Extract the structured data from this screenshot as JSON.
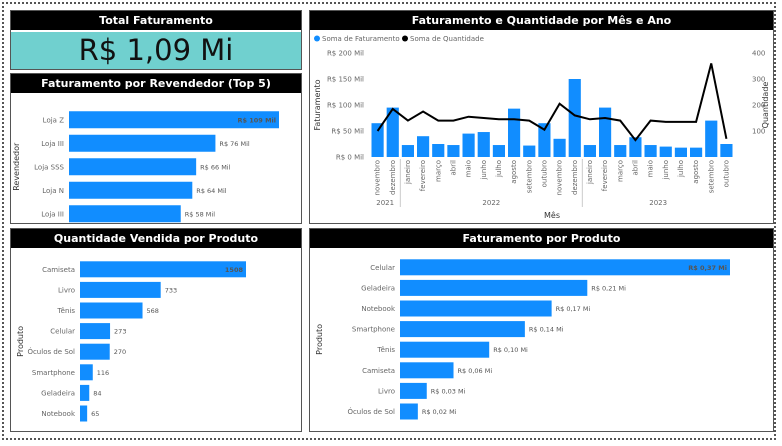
{
  "kpi": {
    "title": "Total Faturamento",
    "value": "R$ 1,09 Mi"
  },
  "colors": {
    "bar": "#118dff",
    "line": "#000000",
    "title_bg": "#000000",
    "kpi_bg": "#70d0cf"
  },
  "reseller": {
    "title": "Faturamento por Revendedor (Top 5)"
  },
  "monthly": {
    "title": "Faturamento e Quantidade por Mês e Ano"
  },
  "qty_product": {
    "title": "Quantidade Vendida por Produto"
  },
  "rev_product": {
    "title": "Faturamento por Produto"
  },
  "chart_data": [
    {
      "type": "bar",
      "orientation": "horizontal",
      "title": "Faturamento por Revendedor (Top 5)",
      "ylabel": "Revendedor",
      "categories": [
        "Loja Z",
        "Loja III",
        "Loja SSS",
        "Loja N",
        "Loja III"
      ],
      "values": [
        109,
        76,
        66,
        64,
        58
      ],
      "data_labels": [
        "R$ 109 Mil",
        "R$ 76 Mil",
        "R$ 66 Mil",
        "R$ 64 Mil",
        "R$ 58 Mil"
      ],
      "xlim": [
        0,
        109
      ]
    },
    {
      "type": "bar+line",
      "title": "Faturamento e Quantidade por Mês e Ano",
      "xlabel": "Mês",
      "ylabel": "Faturamento",
      "y2label": "Quantidade",
      "legend": [
        "Soma de Faturamento",
        "Soma de Quantidade"
      ],
      "legend_position": "top-left",
      "y_ticks": [
        "R$ 0 Mil",
        "R$ 50 Mil",
        "R$ 100 Mil",
        "R$ 150 Mil",
        "R$ 200 Mil"
      ],
      "ylim": [
        0,
        200
      ],
      "y2_ticks": [
        "100",
        "200",
        "300",
        "400"
      ],
      "y2lim": [
        0,
        400
      ],
      "categories": [
        "novembro",
        "dezembro",
        "janeiro",
        "fevereiro",
        "março",
        "abril",
        "maio",
        "junho",
        "julho",
        "agosto",
        "setembro",
        "outubro",
        "novembro",
        "dezembro",
        "janeiro",
        "fevereiro",
        "março",
        "abril",
        "maio",
        "junho",
        "julho",
        "agosto",
        "setembro",
        "outubro"
      ],
      "years": [
        {
          "label": "2021",
          "start": 0,
          "end": 1
        },
        {
          "label": "2022",
          "start": 2,
          "end": 13
        },
        {
          "label": "2023",
          "start": 14,
          "end": 23
        }
      ],
      "series": [
        {
          "name": "Soma de Faturamento",
          "type": "bar",
          "values": [
            65,
            95,
            23,
            40,
            25,
            23,
            45,
            48,
            23,
            93,
            22,
            65,
            35,
            150,
            23,
            95,
            23,
            38,
            23,
            20,
            18,
            18,
            70,
            25
          ]
        },
        {
          "name": "Soma de Quantidade",
          "type": "line",
          "values": [
            100,
            185,
            140,
            175,
            140,
            140,
            155,
            150,
            145,
            145,
            140,
            105,
            205,
            160,
            145,
            150,
            140,
            65,
            140,
            135,
            135,
            135,
            360,
            70
          ]
        }
      ]
    },
    {
      "type": "bar",
      "orientation": "horizontal",
      "title": "Quantidade Vendida por Produto",
      "ylabel": "Produto",
      "categories": [
        "Camiseta",
        "Livro",
        "Tênis",
        "Celular",
        "Óculos de Sol",
        "Smartphone",
        "Geladeira",
        "Notebook"
      ],
      "values": [
        1508,
        733,
        568,
        273,
        270,
        116,
        84,
        65
      ],
      "data_labels": [
        "1508",
        "733",
        "568",
        "273",
        "270",
        "116",
        "84",
        "65"
      ],
      "xlim": [
        0,
        1508
      ]
    },
    {
      "type": "bar",
      "orientation": "horizontal",
      "title": "Faturamento por Produto",
      "ylabel": "Produto",
      "categories": [
        "Celular",
        "Geladeira",
        "Notebook",
        "Smartphone",
        "Tênis",
        "Camiseta",
        "Livro",
        "Óculos de Sol"
      ],
      "values": [
        0.37,
        0.21,
        0.17,
        0.14,
        0.1,
        0.06,
        0.03,
        0.02
      ],
      "data_labels": [
        "R$ 0,37 Mi",
        "R$ 0,21 Mi",
        "R$ 0,17 Mi",
        "R$ 0,14 Mi",
        "R$ 0,10 Mi",
        "R$ 0,06 Mi",
        "R$ 0,03 Mi",
        "R$ 0,02 Mi"
      ],
      "xlim": [
        0,
        0.37
      ]
    }
  ]
}
